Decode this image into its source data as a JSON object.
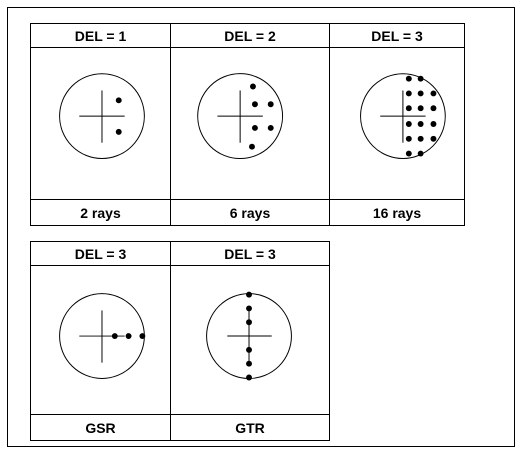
{
  "panels": [
    {
      "header": "DEL = 1",
      "footer": "2 rays"
    },
    {
      "header": "DEL = 2",
      "footer": "6 rays"
    },
    {
      "header": "DEL = 3",
      "footer": "16 rays"
    },
    {
      "header": "DEL = 3",
      "footer": "GSR"
    },
    {
      "header": "DEL = 3",
      "footer": "GTR"
    }
  ]
}
